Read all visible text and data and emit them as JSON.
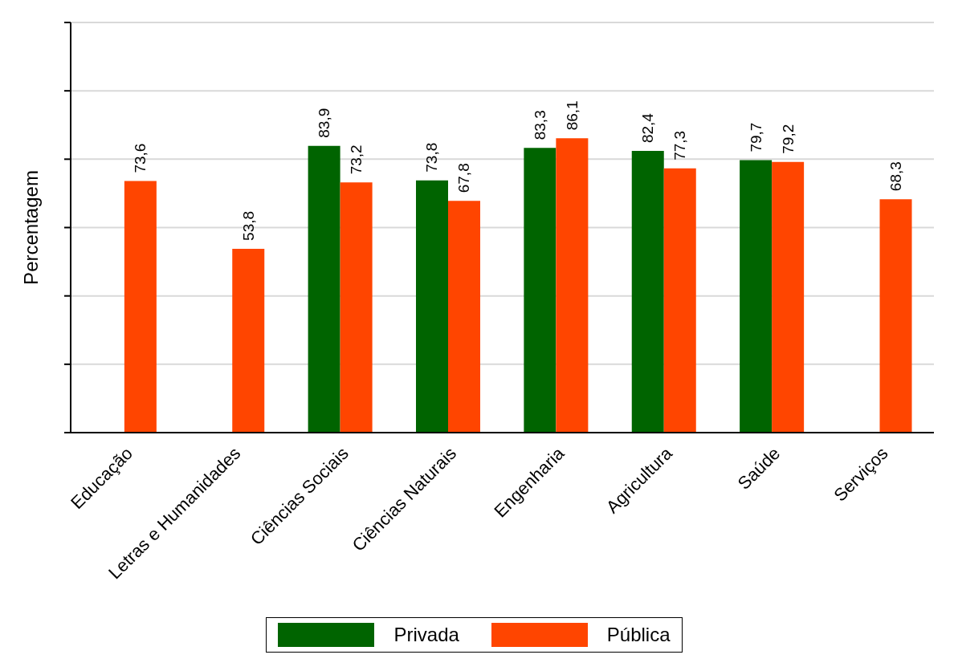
{
  "chart_data": {
    "type": "bar",
    "ylabel": "Percentagem",
    "categories": [
      "Educação",
      "Letras e Humanidades",
      "Ciências Sociais",
      "Ciências Naturais",
      "Engenharia",
      "Agricultura",
      "Saúde",
      "Serviços"
    ],
    "series": [
      {
        "name": "Privada",
        "color": "#006400",
        "values": [
          null,
          null,
          83.9,
          73.8,
          83.3,
          82.4,
          79.7,
          null
        ],
        "value_labels": [
          null,
          null,
          "83,9",
          "73,8",
          "83,3",
          "82,4",
          "79,7",
          null
        ]
      },
      {
        "name": "Pública",
        "color": "#ff4500",
        "values": [
          73.6,
          53.8,
          73.2,
          67.8,
          86.1,
          77.3,
          79.2,
          68.3
        ],
        "value_labels": [
          "73,6",
          "53,8",
          "73,2",
          "67,8",
          "86,1",
          "77,3",
          "79,2",
          "68,3"
        ]
      }
    ],
    "ylim": [
      0,
      120
    ],
    "yticks": [
      {
        "value": 0,
        "label": null
      },
      {
        "value": 20,
        "label": null
      },
      {
        "value": 40,
        "label": null
      },
      {
        "value": 60,
        "label": null
      },
      {
        "value": 80,
        "label": null
      },
      {
        "value": 100,
        "label": null
      },
      {
        "value": 120,
        "label": null
      }
    ],
    "tick_labels": "x",
    "grid": "y",
    "legend": "bottom"
  }
}
